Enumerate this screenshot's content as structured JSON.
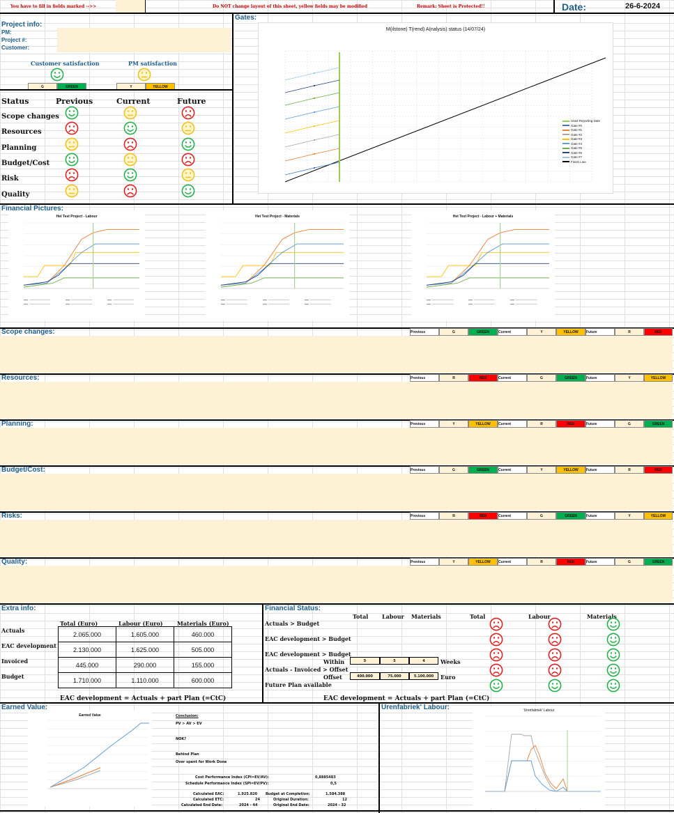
{
  "header": {
    "fill_note": "You have to fill in fields marked -->>",
    "warning": "Do NOT change layout of this sheet, yellow fields may be modified",
    "remark": "Remark: Sheet is Protected!!",
    "date_label": "Date:",
    "date_value": "26-6-2024"
  },
  "project_info": {
    "title": "Project info:",
    "pm_label": "PM:",
    "project_label": "Project #:",
    "customer_label": "Customer:"
  },
  "satisfaction": {
    "customer_label": "Customer satisfaction",
    "pm_label": "PM satisfaction",
    "customer_code": "G",
    "customer_color": "GREEN",
    "pm_code": "Y",
    "pm_color": "YELLOW"
  },
  "status": {
    "label": "Status",
    "previous": "Previous",
    "current": "Current",
    "future": "Future",
    "rows": [
      {
        "name": "Scope changes",
        "prev": "green",
        "cur": "yellow",
        "fut": "red"
      },
      {
        "name": "Resources",
        "prev": "red",
        "cur": "green",
        "fut": "yellow"
      },
      {
        "name": "Planning",
        "prev": "yellow",
        "cur": "red",
        "fut": "green"
      },
      {
        "name": "Budget/Cost",
        "prev": "green",
        "cur": "yellow",
        "fut": "red"
      },
      {
        "name": "Risk",
        "prev": "red",
        "cur": "green",
        "fut": "yellow"
      },
      {
        "name": "Quality",
        "prev": "yellow",
        "cur": "red",
        "fut": "green"
      }
    ]
  },
  "gates": {
    "title": "Gates:",
    "chart_title": "M(ilstone) T(rend) A(nalysis) status (14/07/24)",
    "legend": [
      "Used Reporting Date",
      "Gate #0",
      "Gate #1",
      "Gate #2",
      "Gate #3",
      "Gate #4",
      "Gate #5",
      "Gate #6",
      "Gate #7",
      "Finish Line"
    ]
  },
  "financial": {
    "title": "Financial Pictures:",
    "charts": [
      "Het Test Project - Labour",
      "Het Test Project - Materials",
      "Het Test Project - Labour + Materials"
    ]
  },
  "sections": [
    {
      "title": "Scope changes:",
      "prev_code": "G",
      "prev_color": "GREEN",
      "cur_code": "Y",
      "cur_color": "YELLOW",
      "fut_code": "R",
      "fut_color": "RED"
    },
    {
      "title": "Resources:",
      "prev_code": "R",
      "prev_color": "RED",
      "cur_code": "G",
      "cur_color": "GREEN",
      "fut_code": "Y",
      "fut_color": "YELLOW"
    },
    {
      "title": "Planning:",
      "prev_code": "Y",
      "prev_color": "YELLOW",
      "cur_code": "R",
      "cur_color": "RED",
      "fut_code": "G",
      "fut_color": "GREEN"
    },
    {
      "title": "Budget/Cost:",
      "prev_code": "G",
      "prev_color": "GREEN",
      "cur_code": "Y",
      "cur_color": "YELLOW",
      "fut_code": "R",
      "fut_color": "RED"
    },
    {
      "title": "Risks:",
      "prev_code": "R",
      "prev_color": "RED",
      "cur_code": "G",
      "cur_color": "GREEN",
      "fut_code": "Y",
      "fut_color": "YELLOW"
    },
    {
      "title": "Quality:",
      "prev_code": "Y",
      "prev_color": "YELLOW",
      "cur_code": "R",
      "cur_color": "RED",
      "fut_code": "G",
      "fut_color": "GREEN"
    }
  ],
  "pcf_labels": {
    "previous": "Previous",
    "current": "Current",
    "future": "Future"
  },
  "extra_info": {
    "title": "Extra info:",
    "col_total": "Total (Euro)",
    "col_labour": "Labour (Euro)",
    "col_materials": "Materials (Euro)",
    "rows": [
      {
        "label": "Actuals",
        "total": "2.065.000",
        "labour": "1.605.000",
        "materials": "460.000"
      },
      {
        "label": "EAC development",
        "total": "2.130.000",
        "labour": "1.625.000",
        "materials": "505.000"
      },
      {
        "label": "Invoiced",
        "total": "445.000",
        "labour": "290.000",
        "materials": "155.000"
      },
      {
        "label": "Budget",
        "total": "1.710.000",
        "labour": "1.110.000",
        "materials": "600.000"
      }
    ],
    "footnote": "EAC development = Actuals + part Plan (=CtC)"
  },
  "financial_status": {
    "title": "Financial Status:",
    "col_total": "Total",
    "col_labour": "Labour",
    "col_materials": "Materials",
    "rows": [
      "Actuals > Budget",
      "EAC development > Budget",
      "EAC development > Budget",
      "Actuals - Invoiced > Offset",
      "Future Plan available"
    ],
    "within_label": "Within",
    "within_values": [
      "5",
      "5",
      "4"
    ],
    "weeks_label": "Weeks",
    "offset_label": "Offset",
    "offset_values": [
      "400.000",
      "75.000",
      "5.100.000"
    ],
    "euro_label": "Euro",
    "faces": [
      [
        "red",
        "red",
        "green"
      ],
      [
        "red",
        "red",
        "green"
      ],
      [
        "red",
        "red",
        "green"
      ],
      [
        "red",
        "red",
        "green"
      ],
      [
        "green",
        "green",
        "green"
      ]
    ],
    "footnote": "EAC development = Actuals + part Plan (=CtC)"
  },
  "earned_value": {
    "title": "Earned Value:",
    "chart_title": "Earned Value",
    "conclusion_label": "Conclusion:",
    "line1": "PV > AV > EV",
    "line2": "NOK?",
    "line3": "Behind Plan",
    "line4": "Over spent for Work Done",
    "cpi_label": "Cost Performance Index (CPI=EV/AV):",
    "cpi_value": "0,8885483",
    "spi_label": "Schedule Performance Index (SPI=EV/PV):",
    "spi_value": "0,5",
    "eac_label": "Calculated EAC:",
    "eac_value": "1.925.820",
    "etc_label": "Calculated ETC:",
    "etc_value": "24",
    "end_label": "Calculated End Date:",
    "end_value": "2024 - 44",
    "bac_label": "Budget at Completion:",
    "bac_value": "1.584.388",
    "od_label": "Original Duration:",
    "od_value": "12",
    "oed_label": "Original End Date:",
    "oed_value": "2024 - 32"
  },
  "urenfabriek": {
    "title": "Urenfabriek' Labour:",
    "chart_title": "'Urenfabriek' Labour"
  },
  "colors": {
    "green": "#00b050",
    "yellow": "#ffc000",
    "red": "#ff0000",
    "face_green": "#22b04a",
    "face_yellow": "#f0c020",
    "face_red": "#e02020"
  }
}
